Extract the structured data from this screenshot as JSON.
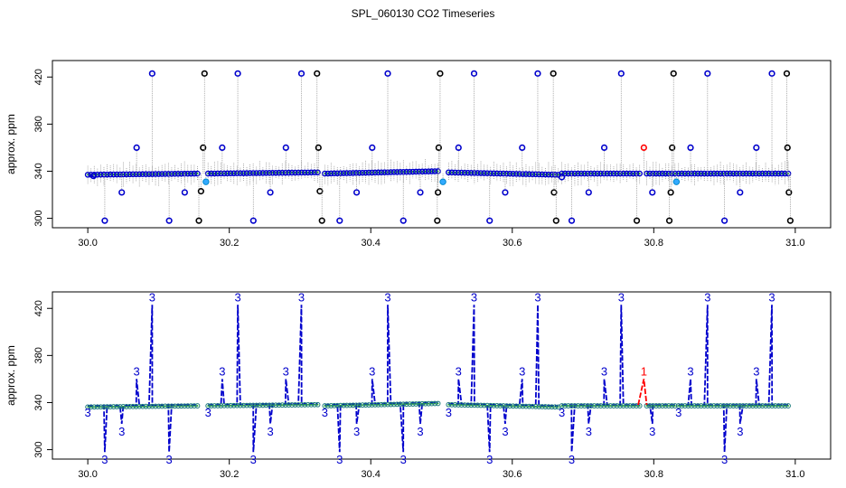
{
  "figure": {
    "title": "SPL_060130  CO2 Timeseries"
  },
  "colors": {
    "qc3": "#0000cc",
    "qc1": "#ff0000",
    "raw": "#000000",
    "sd_whisker": "#999999",
    "cyan": "#33aaff",
    "green": "#22aa22"
  },
  "chart_data": [
    {
      "type": "scatter",
      "panel": "top",
      "title": "",
      "xlabel": "",
      "ylabel": "approx. ppm",
      "xlim": [
        29.95,
        31.05
      ],
      "ylim": [
        292,
        434
      ],
      "xticks": [
        "30.0",
        "30.2",
        "30.4",
        "30.6",
        "30.8",
        "31.0"
      ],
      "xtick_values": [
        30.0,
        30.2,
        30.4,
        30.6,
        30.8,
        31.0
      ],
      "yticks": [
        "300",
        "340",
        "380",
        "420"
      ],
      "ytick_values": [
        300,
        340,
        380,
        420
      ],
      "grid": false,
      "baseline_segments": [
        {
          "x0": 30.0,
          "x1": 30.155,
          "y0": 337,
          "y1": 338
        },
        {
          "x0": 30.17,
          "x1": 30.325,
          "y0": 338,
          "y1": 339
        },
        {
          "x0": 30.335,
          "x1": 30.495,
          "y0": 338,
          "y1": 340
        },
        {
          "x0": 30.51,
          "x1": 30.665,
          "y0": 339,
          "y1": 337
        },
        {
          "x0": 30.67,
          "x1": 30.78,
          "y0": 338,
          "y1": 338
        },
        {
          "x0": 30.79,
          "x1": 30.83,
          "y0": 338,
          "y1": 338
        },
        {
          "x0": 30.835,
          "x1": 30.99,
          "y0": 338,
          "y1": 338
        }
      ],
      "spikes": [
        {
          "x": 30.008,
          "y": 336,
          "flag": "qc3"
        },
        {
          "x": 30.024,
          "y": 298,
          "flag": "qc3"
        },
        {
          "x": 30.048,
          "y": 322,
          "flag": "qc3"
        },
        {
          "x": 30.069,
          "y": 360,
          "flag": "qc3"
        },
        {
          "x": 30.091,
          "y": 423,
          "flag": "qc3"
        },
        {
          "x": 30.115,
          "y": 298,
          "flag": "qc3"
        },
        {
          "x": 30.137,
          "y": 322,
          "flag": "qc3"
        },
        {
          "x": 30.157,
          "y": 298,
          "flag": "raw"
        },
        {
          "x": 30.16,
          "y": 323,
          "flag": "raw"
        },
        {
          "x": 30.163,
          "y": 360,
          "flag": "raw"
        },
        {
          "x": 30.165,
          "y": 423,
          "flag": "raw"
        },
        {
          "x": 30.167,
          "y": 331,
          "flag": "cyan"
        },
        {
          "x": 30.19,
          "y": 360,
          "flag": "qc3"
        },
        {
          "x": 30.212,
          "y": 423,
          "flag": "qc3"
        },
        {
          "x": 30.234,
          "y": 298,
          "flag": "qc3"
        },
        {
          "x": 30.258,
          "y": 322,
          "flag": "qc3"
        },
        {
          "x": 30.28,
          "y": 360,
          "flag": "qc3"
        },
        {
          "x": 30.302,
          "y": 423,
          "flag": "qc3"
        },
        {
          "x": 30.324,
          "y": 423,
          "flag": "raw"
        },
        {
          "x": 30.326,
          "y": 360,
          "flag": "raw"
        },
        {
          "x": 30.328,
          "y": 323,
          "flag": "raw"
        },
        {
          "x": 30.331,
          "y": 298,
          "flag": "raw"
        },
        {
          "x": 30.356,
          "y": 298,
          "flag": "qc3"
        },
        {
          "x": 30.38,
          "y": 322,
          "flag": "qc3"
        },
        {
          "x": 30.402,
          "y": 360,
          "flag": "qc3"
        },
        {
          "x": 30.424,
          "y": 423,
          "flag": "qc3"
        },
        {
          "x": 30.446,
          "y": 298,
          "flag": "qc3"
        },
        {
          "x": 30.47,
          "y": 322,
          "flag": "qc3"
        },
        {
          "x": 30.494,
          "y": 298,
          "flag": "raw"
        },
        {
          "x": 30.495,
          "y": 322,
          "flag": "raw"
        },
        {
          "x": 30.496,
          "y": 360,
          "flag": "raw"
        },
        {
          "x": 30.498,
          "y": 423,
          "flag": "raw"
        },
        {
          "x": 30.502,
          "y": 331,
          "flag": "cyan"
        },
        {
          "x": 30.524,
          "y": 360,
          "flag": "qc3"
        },
        {
          "x": 30.546,
          "y": 423,
          "flag": "qc3"
        },
        {
          "x": 30.568,
          "y": 298,
          "flag": "qc3"
        },
        {
          "x": 30.59,
          "y": 322,
          "flag": "qc3"
        },
        {
          "x": 30.614,
          "y": 360,
          "flag": "qc3"
        },
        {
          "x": 30.636,
          "y": 423,
          "flag": "qc3"
        },
        {
          "x": 30.658,
          "y": 423,
          "flag": "raw"
        },
        {
          "x": 30.659,
          "y": 322,
          "flag": "raw"
        },
        {
          "x": 30.662,
          "y": 298,
          "flag": "raw"
        },
        {
          "x": 30.67,
          "y": 335,
          "flag": "qc3"
        },
        {
          "x": 30.684,
          "y": 298,
          "flag": "qc3"
        },
        {
          "x": 30.708,
          "y": 322,
          "flag": "qc3"
        },
        {
          "x": 30.73,
          "y": 360,
          "flag": "qc3"
        },
        {
          "x": 30.754,
          "y": 423,
          "flag": "qc3"
        },
        {
          "x": 30.776,
          "y": 298,
          "flag": "raw"
        },
        {
          "x": 30.786,
          "y": 360,
          "flag": "qc1"
        },
        {
          "x": 30.798,
          "y": 322,
          "flag": "qc3"
        },
        {
          "x": 30.822,
          "y": 298,
          "flag": "raw"
        },
        {
          "x": 30.824,
          "y": 322,
          "flag": "raw"
        },
        {
          "x": 30.826,
          "y": 360,
          "flag": "raw"
        },
        {
          "x": 30.828,
          "y": 423,
          "flag": "raw"
        },
        {
          "x": 30.832,
          "y": 331,
          "flag": "cyan"
        },
        {
          "x": 30.852,
          "y": 360,
          "flag": "qc3"
        },
        {
          "x": 30.876,
          "y": 423,
          "flag": "qc3"
        },
        {
          "x": 30.9,
          "y": 298,
          "flag": "qc3"
        },
        {
          "x": 30.922,
          "y": 322,
          "flag": "qc3"
        },
        {
          "x": 30.945,
          "y": 360,
          "flag": "qc3"
        },
        {
          "x": 30.967,
          "y": 423,
          "flag": "qc3"
        },
        {
          "x": 30.988,
          "y": 423,
          "flag": "raw"
        },
        {
          "x": 30.989,
          "y": 360,
          "flag": "raw"
        },
        {
          "x": 30.991,
          "y": 322,
          "flag": "raw"
        },
        {
          "x": 30.993,
          "y": 298,
          "flag": "raw"
        }
      ]
    },
    {
      "type": "line",
      "panel": "bottom",
      "title": "",
      "xlabel": "",
      "ylabel": "approx. ppm",
      "xlim": [
        29.95,
        31.05
      ],
      "ylim": [
        292,
        434
      ],
      "xticks": [
        "30.0",
        "30.2",
        "30.4",
        "30.6",
        "30.8",
        "31.0"
      ],
      "xtick_values": [
        30.0,
        30.2,
        30.4,
        30.6,
        30.8,
        31.0
      ],
      "yticks": [
        "300",
        "340",
        "380",
        "420"
      ],
      "ytick_values": [
        300,
        340,
        380,
        420
      ],
      "grid": false,
      "point_label_char": "3",
      "segments": [
        {
          "x0": 30.0,
          "x1": 30.155,
          "y0": 337,
          "y1": 338
        },
        {
          "x0": 30.17,
          "x1": 30.325,
          "y0": 338,
          "y1": 339
        },
        {
          "x0": 30.335,
          "x1": 30.495,
          "y0": 338,
          "y1": 340
        },
        {
          "x0": 30.51,
          "x1": 30.665,
          "y0": 339,
          "y1": 337
        },
        {
          "x0": 30.67,
          "x1": 30.78,
          "y0": 338,
          "y1": 338
        },
        {
          "x0": 30.79,
          "x1": 30.83,
          "y0": 338,
          "y1": 338
        },
        {
          "x0": 30.835,
          "x1": 30.99,
          "y0": 338,
          "y1": 338
        }
      ],
      "spike_points": [
        {
          "x": 30.024,
          "y": 298,
          "label": "3"
        },
        {
          "x": 30.048,
          "y": 322,
          "label": "3"
        },
        {
          "x": 30.069,
          "y": 360,
          "label": "3"
        },
        {
          "x": 30.091,
          "y": 423,
          "label": "3"
        },
        {
          "x": 30.115,
          "y": 298,
          "label": "3"
        },
        {
          "x": 30.19,
          "y": 360,
          "label": "3"
        },
        {
          "x": 30.212,
          "y": 423,
          "label": "3"
        },
        {
          "x": 30.234,
          "y": 298,
          "label": "3"
        },
        {
          "x": 30.258,
          "y": 322,
          "label": "3"
        },
        {
          "x": 30.28,
          "y": 360,
          "label": "3"
        },
        {
          "x": 30.302,
          "y": 423,
          "label": "3"
        },
        {
          "x": 30.356,
          "y": 298,
          "label": "3"
        },
        {
          "x": 30.38,
          "y": 322,
          "label": "3"
        },
        {
          "x": 30.402,
          "y": 360,
          "label": "3"
        },
        {
          "x": 30.424,
          "y": 423,
          "label": "3"
        },
        {
          "x": 30.446,
          "y": 298,
          "label": "3"
        },
        {
          "x": 30.47,
          "y": 322,
          "label": "3"
        },
        {
          "x": 30.524,
          "y": 360,
          "label": "3"
        },
        {
          "x": 30.546,
          "y": 423,
          "label": "3"
        },
        {
          "x": 30.568,
          "y": 298,
          "label": "3"
        },
        {
          "x": 30.59,
          "y": 322,
          "label": "3"
        },
        {
          "x": 30.614,
          "y": 360,
          "label": "3"
        },
        {
          "x": 30.636,
          "y": 423,
          "label": "3"
        },
        {
          "x": 30.684,
          "y": 298,
          "label": "3"
        },
        {
          "x": 30.708,
          "y": 322,
          "label": "3"
        },
        {
          "x": 30.73,
          "y": 360,
          "label": "3"
        },
        {
          "x": 30.754,
          "y": 423,
          "label": "3"
        },
        {
          "x": 30.786,
          "y": 360,
          "label": "1"
        },
        {
          "x": 30.798,
          "y": 322,
          "label": "3"
        },
        {
          "x": 30.852,
          "y": 360,
          "label": "3"
        },
        {
          "x": 30.876,
          "y": 423,
          "label": "3"
        },
        {
          "x": 30.9,
          "y": 298,
          "label": "3"
        },
        {
          "x": 30.922,
          "y": 322,
          "label": "3"
        },
        {
          "x": 30.945,
          "y": 360,
          "label": "3"
        },
        {
          "x": 30.967,
          "y": 423,
          "label": "3"
        }
      ],
      "segment_end_labels": [
        {
          "x": 30.0,
          "y": 331,
          "label": "3"
        },
        {
          "x": 30.17,
          "y": 331,
          "label": "3"
        },
        {
          "x": 30.335,
          "y": 331,
          "label": "3"
        },
        {
          "x": 30.51,
          "y": 331,
          "label": "3"
        },
        {
          "x": 30.67,
          "y": 331,
          "label": "3"
        },
        {
          "x": 30.835,
          "y": 331,
          "label": "3"
        }
      ]
    }
  ]
}
